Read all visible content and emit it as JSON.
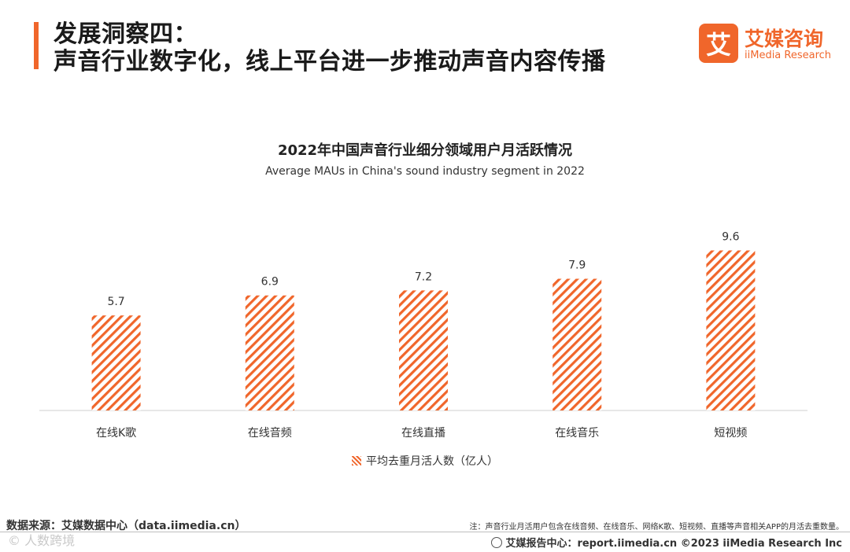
{
  "header": {
    "title_line1": "发展洞察四：",
    "title_line2": "声音行业数字化，线上平台进一步推动声音内容传播",
    "accent_color": "#f0662b"
  },
  "logo": {
    "mark": "艾",
    "cn": "艾媒咨询",
    "en": "iiMedia Research"
  },
  "chart_data": {
    "type": "bar",
    "title": "2022年中国声音行业细分领域用户月活跃情况",
    "subtitle": "Average MAUs in China's sound industry segment in 2022",
    "categories": [
      "在线K歌",
      "在线音频",
      "在线直播",
      "在线音乐",
      "短视频"
    ],
    "series": [
      {
        "name": "平均去重月活人数（亿人）",
        "values": [
          5.7,
          6.9,
          7.2,
          7.9,
          9.6
        ]
      }
    ],
    "value_labels": [
      "5.7",
      "6.9",
      "7.2",
      "7.9",
      "9.6"
    ],
    "xlabel": "",
    "ylabel": "",
    "ylim": [
      0,
      12.5
    ],
    "grid": false,
    "legend_position": "bottom",
    "bar_color": "#f0662b"
  },
  "footer": {
    "source": "数据来源：艾媒数据中心（data.iimedia.cn）",
    "note": "注：声音行业月活用户包含在线音频、在线音乐、网络K歌、短视频、直播等声音相关APP的月活去重数量。",
    "watermark": "©  人数跨境",
    "report_center": "艾媒报告中心：report.iimedia.cn   ©2023  iiMedia Research  Inc"
  }
}
